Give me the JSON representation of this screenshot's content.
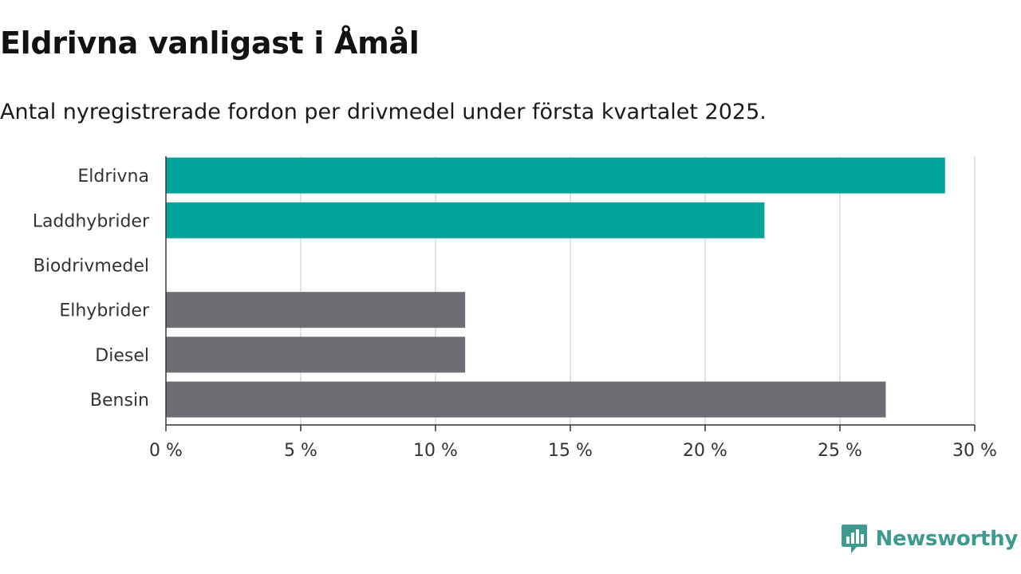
{
  "title": "Eldrivna vanligast i Åmål",
  "subtitle": "Antal nyregistrerade fordon per drivmedel under första kvartalet 2025.",
  "brand": {
    "name": "Newsworthy",
    "color": "#3d9a8f"
  },
  "colors": {
    "highlight": "#00a49a",
    "default": "#6e6d74",
    "grid": "#d9d9d9",
    "axis": "#333333"
  },
  "chart_data": {
    "type": "bar",
    "orientation": "horizontal",
    "categories": [
      "Eldrivna",
      "Laddhybrider",
      "Biodrivmedel",
      "Elhybrider",
      "Diesel",
      "Bensin"
    ],
    "values": [
      28.9,
      22.2,
      0,
      11.1,
      11.1,
      26.7
    ],
    "bar_colors": [
      "#00a49a",
      "#00a49a",
      "#00a49a",
      "#6e6d74",
      "#6e6d74",
      "#6e6d74"
    ],
    "xlim": [
      0,
      30
    ],
    "ticks": [
      0,
      5,
      10,
      15,
      20,
      25,
      30
    ],
    "tick_labels": [
      "0 %",
      "5 %",
      "10 %",
      "15 %",
      "20 %",
      "25 %",
      "30 %"
    ],
    "xlabel": "",
    "ylabel": "",
    "grid": true,
    "legend": "none"
  }
}
